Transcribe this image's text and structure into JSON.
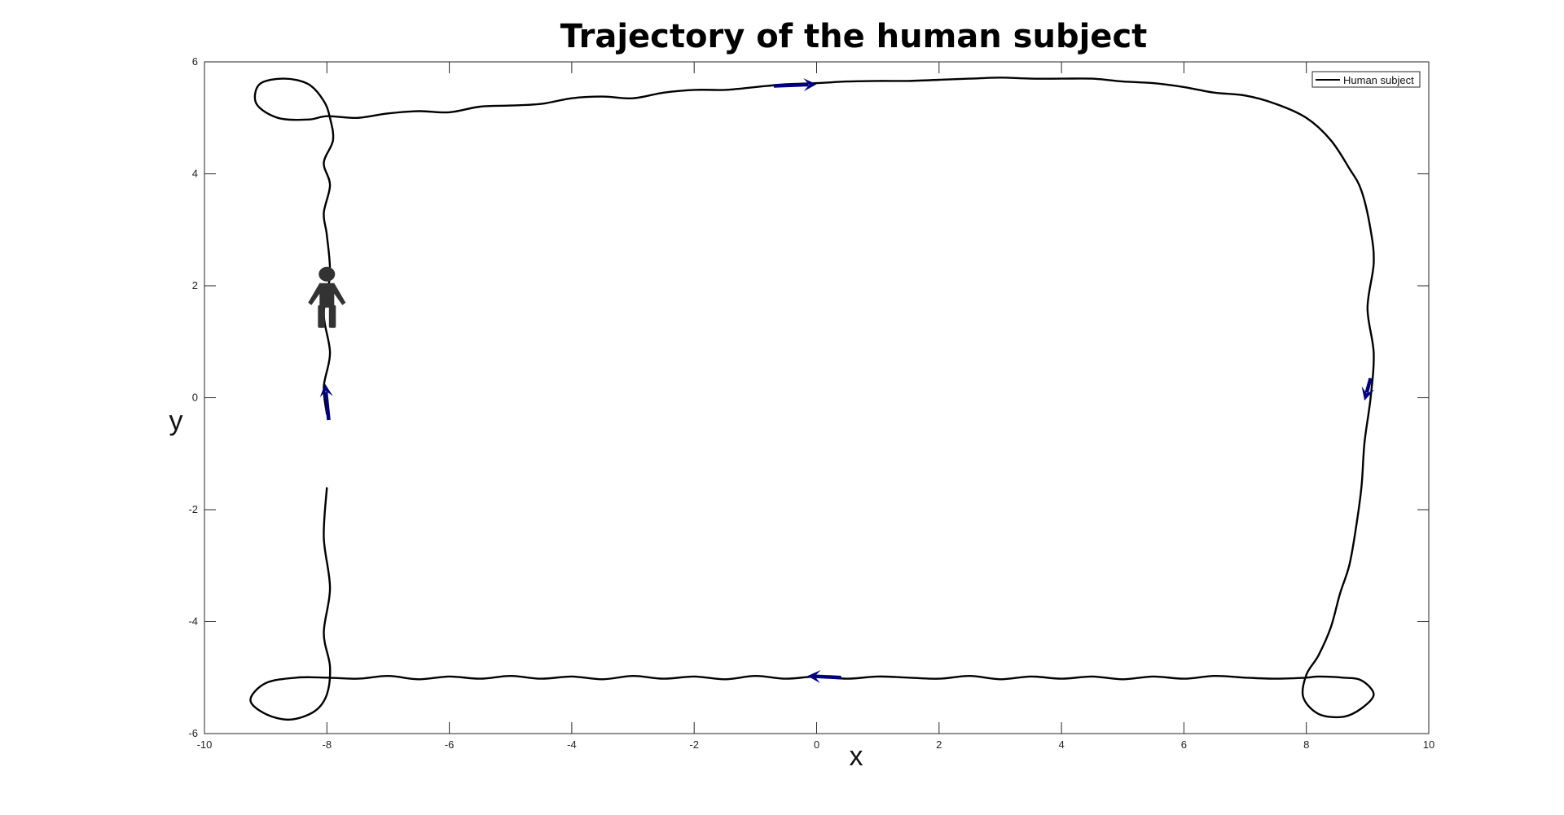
{
  "chart_data": {
    "type": "line",
    "title": "Trajectory of the human subject",
    "xlabel": "x",
    "ylabel": "y",
    "xlim": [
      -10,
      10
    ],
    "ylim": [
      -6,
      6
    ],
    "xticks": [
      -10,
      -8,
      -6,
      -4,
      -2,
      0,
      2,
      4,
      6,
      8,
      10
    ],
    "yticks": [
      -6,
      -4,
      -2,
      0,
      2,
      4,
      6
    ],
    "grid": false,
    "legend_position": "top-right",
    "series": [
      {
        "name": "Human subject",
        "color": "#000000",
        "x": [
          -8.0,
          -8.05,
          -7.95,
          -8.05,
          -7.95,
          -8.0,
          -8.05,
          -7.95,
          -8.05,
          -7.9,
          -7.95,
          -8.05,
          -8.3,
          -8.7,
          -9.1,
          -9.15,
          -8.8,
          -8.3,
          -8.0,
          -7.5,
          -7.0,
          -6.5,
          -6.0,
          -5.5,
          -5.0,
          -4.5,
          -4.0,
          -3.5,
          -3.0,
          -2.5,
          -2.0,
          -1.5,
          -1.0,
          -0.5,
          0.0,
          0.5,
          1.0,
          1.5,
          2.0,
          2.5,
          3.0,
          3.5,
          4.0,
          4.5,
          5.0,
          5.5,
          6.0,
          6.5,
          7.0,
          7.5,
          8.0,
          8.4,
          8.7,
          8.9,
          9.05,
          9.1,
          9.0,
          9.1,
          9.05,
          8.95,
          8.9,
          8.8,
          8.7,
          8.55,
          8.4,
          8.2,
          8.0,
          7.95,
          8.2,
          8.6,
          8.9,
          9.1,
          8.9,
          8.6,
          8.2,
          8.0,
          7.5,
          7.0,
          6.5,
          6.0,
          5.5,
          5.0,
          4.5,
          4.0,
          3.5,
          3.0,
          2.5,
          2.0,
          1.5,
          1.0,
          0.5,
          0.0,
          -0.5,
          -1.0,
          -1.5,
          -2.0,
          -2.5,
          -3.0,
          -3.5,
          -4.0,
          -4.5,
          -5.0,
          -5.5,
          -6.0,
          -6.5,
          -7.0,
          -7.5,
          -8.0,
          -8.5,
          -9.0,
          -9.25,
          -9.0,
          -8.6,
          -8.2,
          -8.0,
          -7.95,
          -8.05,
          -7.95,
          -8.05,
          -8.0
        ],
        "y": [
          -0.3,
          0.2,
          0.8,
          1.5,
          2.2,
          2.9,
          3.3,
          3.8,
          4.2,
          4.6,
          5.0,
          5.3,
          5.6,
          5.7,
          5.6,
          5.25,
          5.0,
          4.97,
          5.03,
          5.0,
          5.08,
          5.12,
          5.1,
          5.2,
          5.22,
          5.25,
          5.35,
          5.38,
          5.35,
          5.45,
          5.5,
          5.5,
          5.55,
          5.6,
          5.62,
          5.65,
          5.66,
          5.66,
          5.68,
          5.7,
          5.72,
          5.7,
          5.7,
          5.7,
          5.65,
          5.62,
          5.55,
          5.45,
          5.4,
          5.25,
          5.0,
          4.6,
          4.1,
          3.7,
          3.0,
          2.4,
          1.6,
          0.8,
          0.0,
          -0.8,
          -1.6,
          -2.4,
          -3.0,
          -3.5,
          -4.1,
          -4.6,
          -4.95,
          -5.35,
          -5.65,
          -5.7,
          -5.55,
          -5.3,
          -5.05,
          -5.0,
          -4.98,
          -5.0,
          -5.02,
          -5.0,
          -4.97,
          -5.02,
          -4.98,
          -5.03,
          -4.98,
          -5.02,
          -4.98,
          -5.03,
          -4.97,
          -5.02,
          -5.0,
          -4.98,
          -5.02,
          -4.98,
          -5.02,
          -4.97,
          -5.03,
          -4.98,
          -5.02,
          -4.97,
          -5.03,
          -4.98,
          -5.02,
          -4.97,
          -5.02,
          -4.98,
          -5.03,
          -4.97,
          -5.02,
          -5.0,
          -5.0,
          -5.1,
          -5.4,
          -5.65,
          -5.75,
          -5.6,
          -5.3,
          -4.8,
          -4.2,
          -3.4,
          -2.5,
          -1.6
        ]
      }
    ],
    "annotations": [
      {
        "kind": "direction-arrow",
        "from": [
          -0.7,
          5.57
        ],
        "to": [
          0.0,
          5.6
        ],
        "color": "#000080"
      },
      {
        "kind": "direction-arrow",
        "from": [
          9.05,
          0.35
        ],
        "to": [
          8.95,
          -0.05
        ],
        "color": "#000080"
      },
      {
        "kind": "direction-arrow",
        "from": [
          0.4,
          -5.0
        ],
        "to": [
          -0.15,
          -4.97
        ],
        "color": "#000080"
      },
      {
        "kind": "direction-arrow",
        "from": [
          -7.97,
          -0.4
        ],
        "to": [
          -8.03,
          0.25
        ],
        "color": "#000080"
      },
      {
        "kind": "human-icon",
        "at": [
          -8.0,
          1.8
        ],
        "color": "#333333"
      }
    ]
  }
}
